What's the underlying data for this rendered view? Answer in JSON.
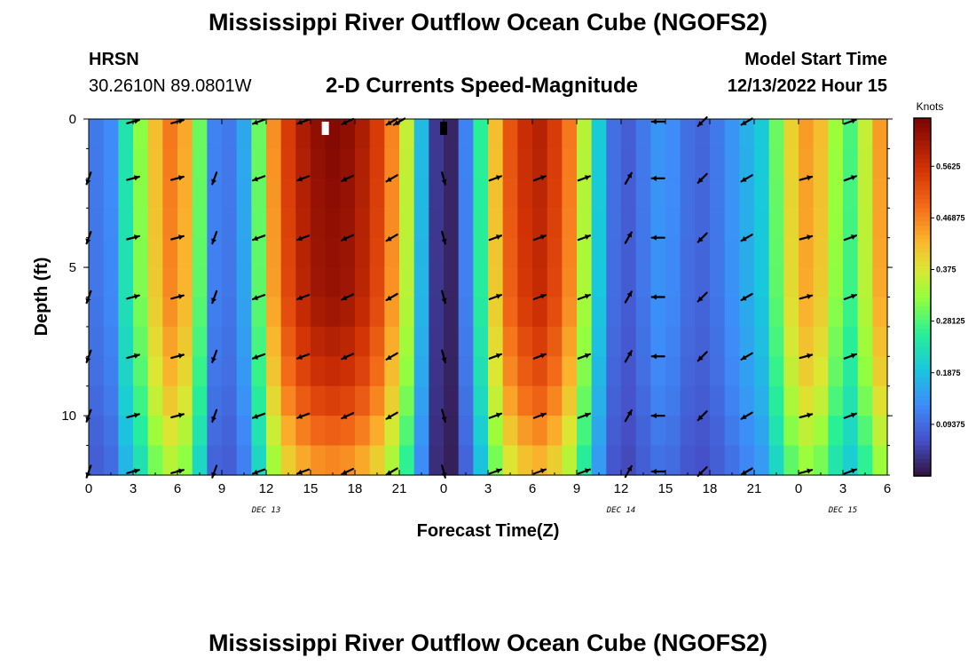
{
  "header": {
    "title": "Mississippi River Outflow Ocean Cube (NGOFS2)",
    "station_name": "HRSN",
    "station_coords": "30.2610N  89.0801W",
    "subtitle": "2-D Currents Speed-Magnitude",
    "model_start_label": "Model Start Time",
    "model_start_value": "12/13/2022 Hour 15"
  },
  "footer": {
    "title": "Mississippi River Outflow Ocean Cube (NGOFS2)"
  },
  "chart_data": {
    "type": "heatmap",
    "xlabel": "Forecast Time(Z)",
    "ylabel": "Depth (ft)",
    "x_range_hours": [
      0,
      54
    ],
    "y_range_ft": [
      0,
      12
    ],
    "y_ticks": [
      0,
      5,
      10
    ],
    "x_tick_labels": [
      "0",
      "3",
      "6",
      "9",
      "12",
      "15",
      "18",
      "21",
      "0",
      "3",
      "6",
      "9",
      "12",
      "15",
      "18",
      "21",
      "0",
      "3",
      "6"
    ],
    "date_labels": [
      {
        "label": "DEC 13",
        "hour": 12
      },
      {
        "label": "DEC 14",
        "hour": 36
      },
      {
        "label": "DEC 15",
        "hour": 51
      }
    ],
    "colorbar": {
      "unit": "Knots",
      "range": [
        0,
        0.65
      ],
      "ticks": [
        0.09375,
        0.1875,
        0.28125,
        0.375,
        0.46875,
        0.5625
      ],
      "tick_labels": [
        "0.09375",
        "0.1875",
        "0.28125",
        "0.375",
        "0.46875",
        "0.5625"
      ]
    },
    "surface_speed_by_hour": [
      {
        "h": 0,
        "v": 0.11
      },
      {
        "h": 1,
        "v": 0.13
      },
      {
        "h": 2,
        "v": 0.24
      },
      {
        "h": 3,
        "v": 0.32
      },
      {
        "h": 4,
        "v": 0.42
      },
      {
        "h": 5,
        "v": 0.48
      },
      {
        "h": 6,
        "v": 0.44
      },
      {
        "h": 7,
        "v": 0.3
      },
      {
        "h": 8,
        "v": 0.12
      },
      {
        "h": 9,
        "v": 0.11
      },
      {
        "h": 10,
        "v": 0.16
      },
      {
        "h": 11,
        "v": 0.3
      },
      {
        "h": 12,
        "v": 0.46
      },
      {
        "h": 13,
        "v": 0.55
      },
      {
        "h": 14,
        "v": 0.6
      },
      {
        "h": 15,
        "v": 0.63
      },
      {
        "h": 16,
        "v": 0.64
      },
      {
        "h": 17,
        "v": 0.63
      },
      {
        "h": 18,
        "v": 0.6
      },
      {
        "h": 19,
        "v": 0.55
      },
      {
        "h": 20,
        "v": 0.47
      },
      {
        "h": 21,
        "v": 0.36
      },
      {
        "h": 22,
        "v": 0.18
      },
      {
        "h": 23,
        "v": 0.04
      },
      {
        "h": 24,
        "v": 0.02
      },
      {
        "h": 25,
        "v": 0.12
      },
      {
        "h": 26,
        "v": 0.26
      },
      {
        "h": 27,
        "v": 0.42
      },
      {
        "h": 28,
        "v": 0.52
      },
      {
        "h": 29,
        "v": 0.57
      },
      {
        "h": 30,
        "v": 0.59
      },
      {
        "h": 31,
        "v": 0.55
      },
      {
        "h": 32,
        "v": 0.48
      },
      {
        "h": 33,
        "v": 0.35
      },
      {
        "h": 34,
        "v": 0.2
      },
      {
        "h": 35,
        "v": 0.1
      },
      {
        "h": 36,
        "v": 0.08
      },
      {
        "h": 37,
        "v": 0.11
      },
      {
        "h": 38,
        "v": 0.14
      },
      {
        "h": 39,
        "v": 0.13
      },
      {
        "h": 40,
        "v": 0.1
      },
      {
        "h": 41,
        "v": 0.09
      },
      {
        "h": 42,
        "v": 0.11
      },
      {
        "h": 43,
        "v": 0.14
      },
      {
        "h": 44,
        "v": 0.17
      },
      {
        "h": 45,
        "v": 0.2
      },
      {
        "h": 46,
        "v": 0.3
      },
      {
        "h": 47,
        "v": 0.4
      },
      {
        "h": 48,
        "v": 0.45
      },
      {
        "h": 49,
        "v": 0.42
      },
      {
        "h": 50,
        "v": 0.33
      },
      {
        "h": 51,
        "v": 0.28
      },
      {
        "h": 52,
        "v": 0.36
      },
      {
        "h": 53,
        "v": 0.45
      },
      {
        "h": 54,
        "v": 0.5
      }
    ],
    "depth_factor": [
      {
        "depth_ft": 0,
        "f": 1.0
      },
      {
        "depth_ft": 6,
        "f": 0.97
      },
      {
        "depth_ft": 9,
        "f": 0.88
      },
      {
        "depth_ft": 12,
        "f": 0.7
      }
    ],
    "arrow_depths_ft": [
      2,
      4,
      6,
      8,
      10,
      12
    ],
    "arrows": [
      {
        "h": 0,
        "dir": 200
      },
      {
        "h": 3,
        "dir": 75
      },
      {
        "h": 6,
        "dir": 75
      },
      {
        "h": 8.5,
        "dir": 200
      },
      {
        "h": 11.5,
        "dir": 250
      },
      {
        "h": 14.5,
        "dir": 250
      },
      {
        "h": 17.5,
        "dir": 245
      },
      {
        "h": 20.5,
        "dir": 240
      },
      {
        "h": 24,
        "dir": 165
      },
      {
        "h": 27.5,
        "dir": 70
      },
      {
        "h": 30.5,
        "dir": 70
      },
      {
        "h": 33.5,
        "dir": 70
      },
      {
        "h": 36.5,
        "dir": 30
      },
      {
        "h": 38.5,
        "dir": 270
      },
      {
        "h": 41.5,
        "dir": 225
      },
      {
        "h": 44.5,
        "dir": 240
      },
      {
        "h": 48.5,
        "dir": 75
      },
      {
        "h": 51.5,
        "dir": 70
      }
    ]
  }
}
